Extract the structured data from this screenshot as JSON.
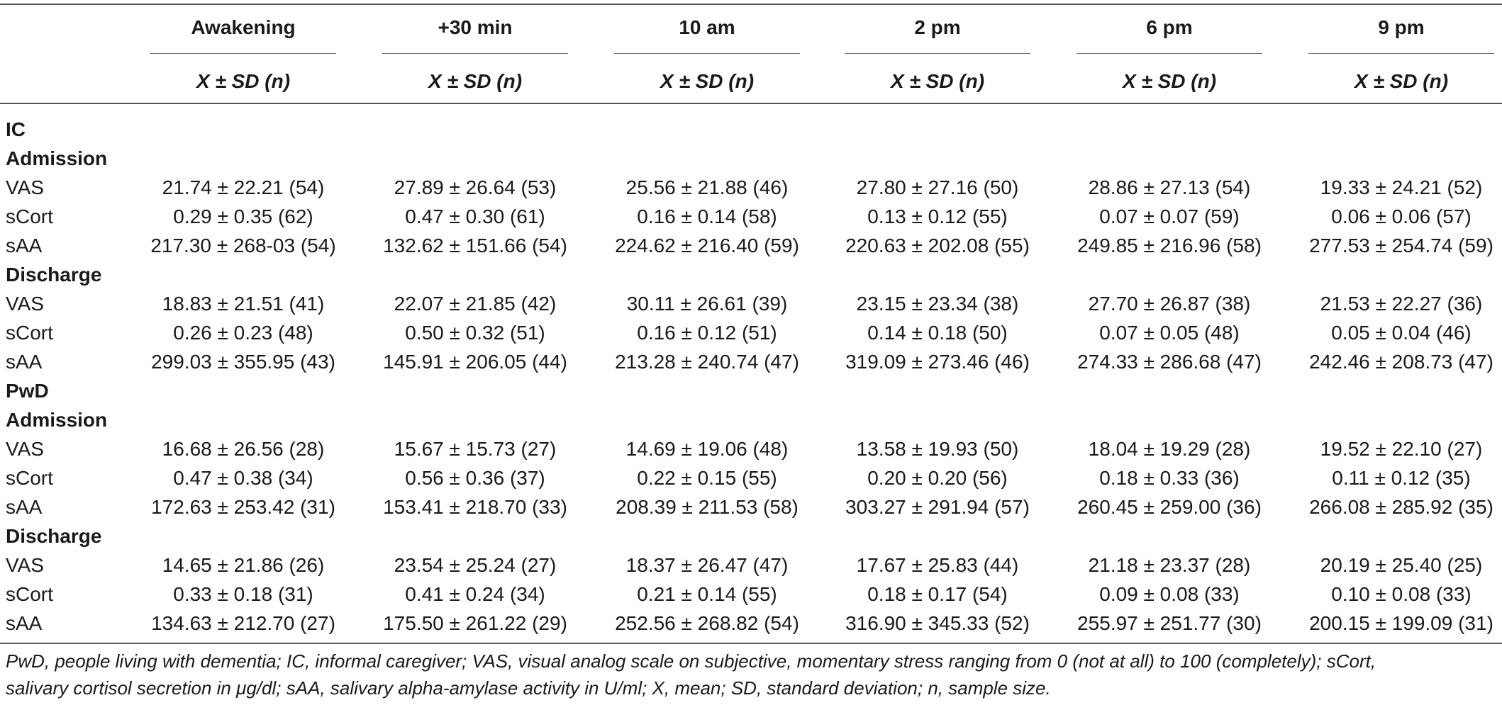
{
  "columns": [
    {
      "label": "Awakening",
      "sub": "X ± SD (n)"
    },
    {
      "label": "+30 min",
      "sub": "X ± SD (n)"
    },
    {
      "label": "10 am",
      "sub": "X ± SD (n)"
    },
    {
      "label": "2 pm",
      "sub": "X ± SD (n)"
    },
    {
      "label": "6 pm",
      "sub": "X ± SD (n)"
    },
    {
      "label": "9 pm",
      "sub": "X ± SD (n)"
    }
  ],
  "rows": [
    {
      "label": "IC",
      "section": true,
      "values": []
    },
    {
      "label": "Admission",
      "section": true,
      "values": []
    },
    {
      "label": "VAS",
      "values": [
        "21.74 ± 22.21 (54)",
        "27.89 ± 26.64 (53)",
        "25.56 ± 21.88 (46)",
        "27.80 ± 27.16 (50)",
        "28.86 ± 27.13 (54)",
        "19.33 ± 24.21 (52)"
      ]
    },
    {
      "label": "sCort",
      "values": [
        "0.29 ± 0.35 (62)",
        "0.47 ± 0.30 (61)",
        "0.16 ± 0.14 (58)",
        "0.13 ± 0.12 (55)",
        "0.07 ± 0.07 (59)",
        "0.06 ± 0.06 (57)"
      ]
    },
    {
      "label": "sAA",
      "values": [
        "217.30 ± 268-03 (54)",
        "132.62 ± 151.66 (54)",
        "224.62 ± 216.40 (59)",
        "220.63 ± 202.08 (55)",
        "249.85 ± 216.96 (58)",
        "277.53 ± 254.74 (59)"
      ]
    },
    {
      "label": "Discharge",
      "section": true,
      "values": []
    },
    {
      "label": "VAS",
      "values": [
        "18.83 ± 21.51 (41)",
        "22.07 ± 21.85 (42)",
        "30.11 ± 26.61 (39)",
        "23.15 ± 23.34 (38)",
        "27.70 ± 26.87 (38)",
        "21.53 ± 22.27 (36)"
      ]
    },
    {
      "label": "sCort",
      "values": [
        "0.26 ± 0.23 (48)",
        "0.50 ± 0.32 (51)",
        "0.16 ± 0.12 (51)",
        "0.14 ± 0.18 (50)",
        "0.07 ± 0.05 (48)",
        "0.05 ± 0.04 (46)"
      ]
    },
    {
      "label": "sAA",
      "values": [
        "299.03 ± 355.95 (43)",
        "145.91 ± 206.05 (44)",
        "213.28 ± 240.74 (47)",
        "319.09 ± 273.46 (46)",
        "274.33 ± 286.68 (47)",
        "242.46 ± 208.73 (47)"
      ]
    },
    {
      "label": "PwD",
      "section": true,
      "values": []
    },
    {
      "label": "Admission",
      "section": true,
      "values": []
    },
    {
      "label": "VAS",
      "values": [
        "16.68 ± 26.56 (28)",
        "15.67 ± 15.73 (27)",
        "14.69 ± 19.06 (48)",
        "13.58 ± 19.93 (50)",
        "18.04 ± 19.29 (28)",
        "19.52 ± 22.10 (27)"
      ]
    },
    {
      "label": "sCort",
      "values": [
        "0.47 ± 0.38 (34)",
        "0.56 ± 0.36 (37)",
        "0.22 ± 0.15 (55)",
        "0.20 ± 0.20 (56)",
        "0.18 ± 0.33 (36)",
        "0.11 ± 0.12 (35)"
      ]
    },
    {
      "label": "sAA",
      "values": [
        "172.63 ± 253.42 (31)",
        "153.41 ± 218.70 (33)",
        "208.39 ± 211.53 (58)",
        "303.27 ± 291.94 (57)",
        "260.45 ± 259.00 (36)",
        "266.08 ± 285.92 (35)"
      ]
    },
    {
      "label": "Discharge",
      "section": true,
      "values": []
    },
    {
      "label": "VAS",
      "values": [
        "14.65 ± 21.86 (26)",
        "23.54 ± 25.24 (27)",
        "18.37 ± 26.47 (47)",
        "17.67 ± 25.83 (44)",
        "21.18 ± 23.37 (28)",
        "20.19 ± 25.40 (25)"
      ]
    },
    {
      "label": "sCort",
      "values": [
        "0.33 ± 0.18 (31)",
        "0.41 ± 0.24 (34)",
        "0.21 ± 0.14 (55)",
        "0.18 ± 0.17 (54)",
        "0.09 ± 0.08 (33)",
        "0.10 ± 0.08 (33)"
      ]
    },
    {
      "label": "sAA",
      "values": [
        "134.63 ± 212.70 (27)",
        "175.50 ± 261.22 (29)",
        "252.56 ± 268.82 (54)",
        "316.90 ± 345.33 (52)",
        "255.97 ± 251.77 (30)",
        "200.15 ± 199.09 (31)"
      ]
    }
  ],
  "footnote": {
    "line1": "PwD, people living with dementia; IC, informal caregiver; VAS, visual analog scale on subjective, momentary stress ranging from 0 (not at all) to 100 (completely); sCort,",
    "line2": "salivary cortisol secretion in μg/dl; sAA, salivary alpha-amylase activity in U/ml; X, mean; SD, standard deviation; n, sample size."
  }
}
